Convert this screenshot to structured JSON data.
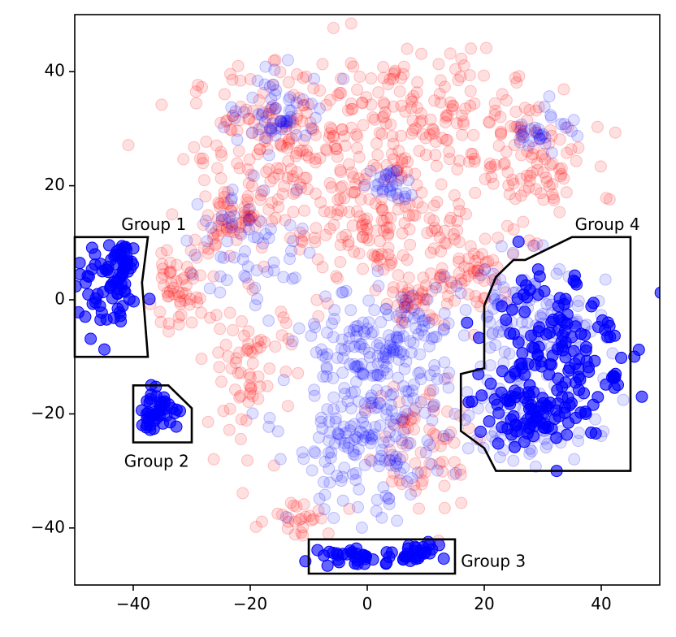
{
  "chart_data": {
    "type": "scatter",
    "title": "",
    "xlabel": "",
    "ylabel": "",
    "xlim": [
      -50,
      50
    ],
    "ylim": [
      -50,
      50
    ],
    "grid": false,
    "colors": {
      "series_a": "#ff0000",
      "series_b": "#0000ff"
    },
    "x_ticks": [
      {
        "value": -40,
        "label": "−40"
      },
      {
        "value": -20,
        "label": "−20"
      },
      {
        "value": 0,
        "label": "0"
      },
      {
        "value": 20,
        "label": "20"
      },
      {
        "value": 40,
        "label": "40"
      }
    ],
    "y_ticks": [
      {
        "value": 40,
        "label": "40"
      },
      {
        "value": 20,
        "label": "20"
      },
      {
        "value": 0,
        "label": "0"
      },
      {
        "value": -20,
        "label": "−20"
      },
      {
        "value": -40,
        "label": "−40"
      }
    ],
    "series": [
      {
        "color": "#ff0000",
        "opacity": 0.12,
        "clusters": [
          {
            "cx": -14,
            "cy": 28,
            "rx": 15,
            "ry": 12,
            "n": 160
          },
          {
            "cx": 8,
            "cy": 32,
            "rx": 16,
            "ry": 11,
            "n": 170
          },
          {
            "cx": 28,
            "cy": 24,
            "rx": 9,
            "ry": 10,
            "n": 90
          },
          {
            "cx": -24,
            "cy": 14,
            "rx": 8,
            "ry": 8,
            "n": 70
          },
          {
            "cx": 2,
            "cy": 12,
            "rx": 16,
            "ry": 9,
            "n": 150
          },
          {
            "cx": -33,
            "cy": 1,
            "rx": 4,
            "ry": 5,
            "n": 50
          },
          {
            "cx": -20,
            "cy": -12,
            "rx": 7,
            "ry": 12,
            "n": 70
          },
          {
            "cx": 8,
            "cy": 0,
            "rx": 5,
            "ry": 4,
            "n": 40
          },
          {
            "cx": 10,
            "cy": -25,
            "rx": 10,
            "ry": 12,
            "n": 70
          },
          {
            "cx": -12,
            "cy": -38,
            "rx": 5,
            "ry": 3,
            "n": 25
          },
          {
            "cx": 18,
            "cy": 5,
            "rx": 6,
            "ry": 6,
            "n": 50
          }
        ]
      },
      {
        "color": "#0000ff",
        "opacity": 0.12,
        "clusters": [
          {
            "cx": -15,
            "cy": 33,
            "rx": 8,
            "ry": 6,
            "n": 60
          },
          {
            "cx": 4,
            "cy": 20,
            "rx": 3,
            "ry": 3,
            "n": 30
          },
          {
            "cx": 3,
            "cy": -8,
            "rx": 12,
            "ry": 9,
            "n": 160
          },
          {
            "cx": 0,
            "cy": -25,
            "rx": 12,
            "ry": 12,
            "n": 180
          },
          {
            "cx": 28,
            "cy": -5,
            "rx": 12,
            "ry": 11,
            "n": 130
          },
          {
            "cx": 28,
            "cy": -22,
            "rx": 10,
            "ry": 6,
            "n": 70
          },
          {
            "cx": 30,
            "cy": 30,
            "rx": 5,
            "ry": 4,
            "n": 30
          },
          {
            "cx": -20,
            "cy": 10,
            "rx": 10,
            "ry": 10,
            "n": 60
          }
        ]
      },
      {
        "color": "#0000ff",
        "opacity": 0.6,
        "clusters": [
          {
            "cx": -44,
            "cy": 1,
            "rx": 5,
            "ry": 6,
            "n": 60
          },
          {
            "cx": -42,
            "cy": 7,
            "rx": 3,
            "ry": 3,
            "n": 25
          },
          {
            "cx": -36,
            "cy": -19.5,
            "rx": 3.5,
            "ry": 3.2,
            "n": 45
          },
          {
            "cx": -2,
            "cy": -45,
            "rx": 5,
            "ry": 1.6,
            "n": 30
          },
          {
            "cx": 7,
            "cy": -44.5,
            "rx": 5,
            "ry": 1.6,
            "n": 30
          },
          {
            "cx": 32,
            "cy": -8,
            "rx": 10,
            "ry": 14,
            "n": 140
          },
          {
            "cx": 26,
            "cy": -20,
            "rx": 8,
            "ry": 6,
            "n": 60
          },
          {
            "cx": 42,
            "cy": -14,
            "rx": 1.2,
            "ry": 1.5,
            "n": 8
          }
        ]
      }
    ],
    "regions": [
      {
        "name": "Group 1",
        "label_pos": [
          -36.5,
          13
        ],
        "label_anchor": "middle",
        "polygon": [
          [
            -50,
            11
          ],
          [
            -37.5,
            11
          ],
          [
            -38.5,
            3
          ],
          [
            -37.5,
            -10
          ],
          [
            -50,
            -10
          ]
        ]
      },
      {
        "name": "Group 2",
        "label_pos": [
          -36,
          -28.5
        ],
        "label_anchor": "middle",
        "polygon": [
          [
            -40,
            -15
          ],
          [
            -34,
            -15
          ],
          [
            -30,
            -19
          ],
          [
            -30,
            -25
          ],
          [
            -40,
            -25
          ]
        ]
      },
      {
        "name": "Group 3",
        "label_pos": [
          16,
          -46
        ],
        "label_anchor": "start",
        "polygon": [
          [
            -10,
            -42
          ],
          [
            15,
            -42
          ],
          [
            15,
            -48
          ],
          [
            -10,
            -48
          ]
        ]
      },
      {
        "name": "Group 4",
        "label_pos": [
          35.5,
          13
        ],
        "label_anchor": "start",
        "polygon": [
          [
            35,
            11
          ],
          [
            45,
            11
          ],
          [
            45,
            -30
          ],
          [
            22,
            -30
          ],
          [
            20,
            -26
          ],
          [
            16,
            -23
          ],
          [
            16,
            -13
          ],
          [
            20,
            -12
          ],
          [
            20,
            -1
          ],
          [
            22,
            4
          ],
          [
            25,
            7
          ],
          [
            27,
            7
          ],
          [
            35,
            11
          ]
        ]
      }
    ]
  }
}
